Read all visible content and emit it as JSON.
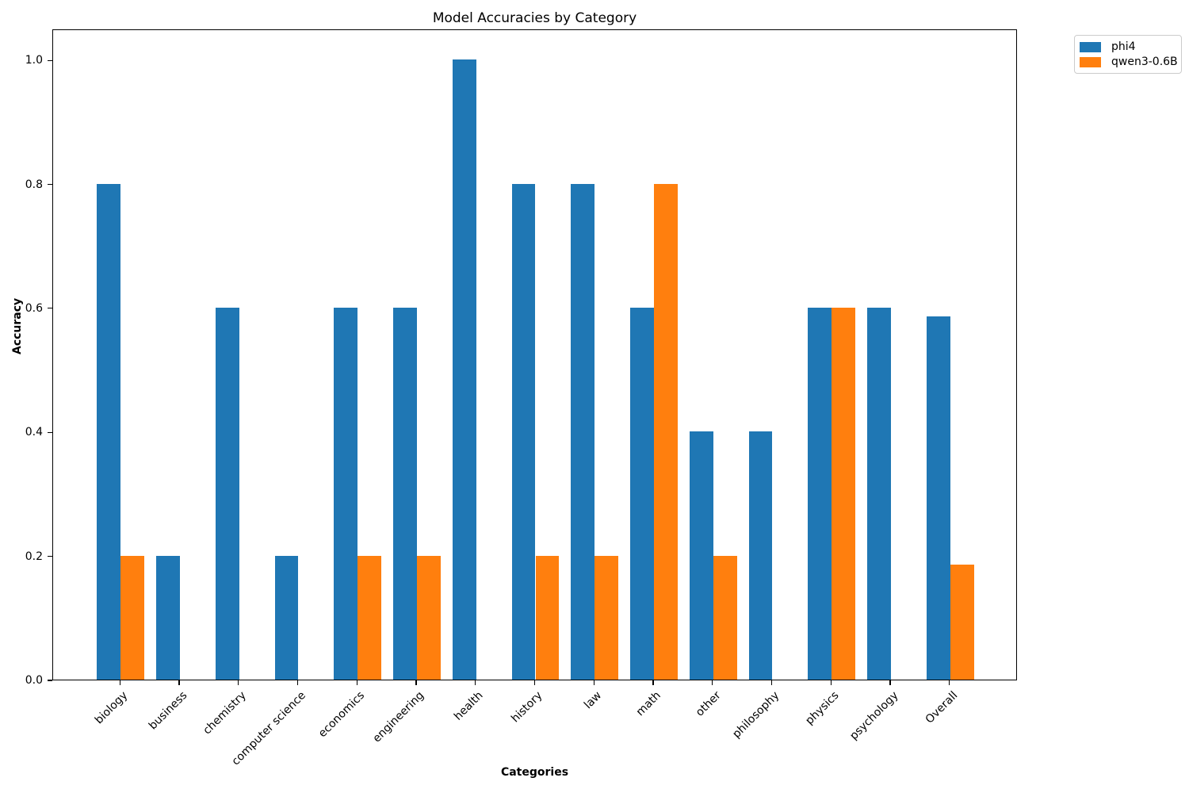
{
  "chart_data": {
    "type": "bar",
    "title": "Model Accuracies by Category",
    "xlabel": "Categories",
    "ylabel": "Accuracy",
    "categories": [
      "biology",
      "business",
      "chemistry",
      "computer science",
      "economics",
      "engineering",
      "health",
      "history",
      "law",
      "math",
      "other",
      "philosophy",
      "physics",
      "psychology",
      "Overall"
    ],
    "series": [
      {
        "name": "phi4",
        "color": "#1f77b4",
        "values": [
          0.8,
          0.2,
          0.6,
          0.2,
          0.6,
          0.6,
          1.0,
          0.8,
          0.8,
          0.6,
          0.4,
          0.4,
          0.6,
          0.6,
          0.5857
        ]
      },
      {
        "name": "qwen3-0.6B",
        "color": "#ff7f0e",
        "values": [
          0.2,
          0.0,
          0.0,
          0.0,
          0.2,
          0.2,
          0.0,
          0.2,
          0.2,
          0.8,
          0.2,
          0.0,
          0.6,
          0.0,
          0.1857
        ]
      }
    ],
    "y_tick_labels": [
      "0.0",
      "0.2",
      "0.4",
      "0.6",
      "0.8",
      "1.0"
    ],
    "ylim": [
      0,
      1.05
    ],
    "bar_width": 0.4,
    "x_tick_rotation": 45,
    "grid": false,
    "legend_position": "upper-right-outside"
  }
}
